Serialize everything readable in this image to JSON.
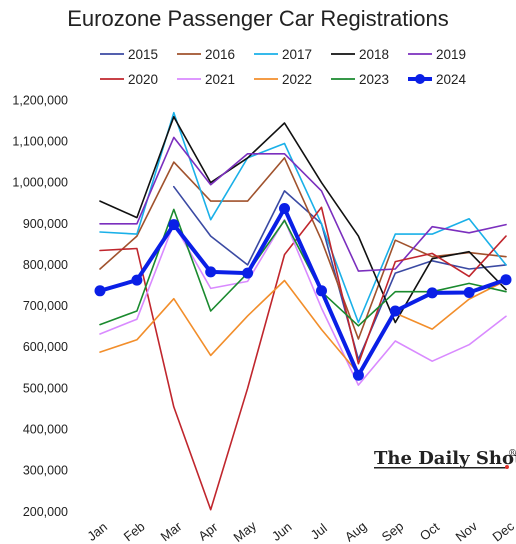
{
  "chart_data": {
    "type": "line",
    "title": "Eurozone Passenger Car Registrations",
    "xlabel": "",
    "ylabel": "",
    "categories": [
      "Jan",
      "Feb",
      "Mar",
      "Apr",
      "May",
      "Jun",
      "Jul",
      "Aug",
      "Sep",
      "Oct",
      "Nov",
      "Dec"
    ],
    "ylim": [
      180000,
      1230000
    ],
    "yticks": [
      200000,
      300000,
      400000,
      500000,
      600000,
      700000,
      800000,
      900000,
      1000000,
      1100000,
      1200000
    ],
    "ytick_labels": [
      "200,000",
      "300,000",
      "400,000",
      "500,000",
      "600,000",
      "700,000",
      "800,000",
      "900,000",
      "1,000,000",
      "1,100,000",
      "1,200,000"
    ],
    "grid": false,
    "legend_position": "top",
    "series": [
      {
        "name": "2015",
        "color": "#3b4aa3",
        "values": [
          null,
          null,
          990000,
          870000,
          800000,
          980000,
          900000,
          570000,
          780000,
          810000,
          790000,
          800000
        ]
      },
      {
        "name": "2016",
        "color": "#a0522d",
        "values": [
          790000,
          870000,
          1050000,
          955000,
          955000,
          1060000,
          860000,
          620000,
          860000,
          820000,
          830000,
          820000
        ]
      },
      {
        "name": "2017",
        "color": "#1ab0e8",
        "values": [
          880000,
          875000,
          1170000,
          910000,
          1060000,
          1095000,
          900000,
          660000,
          875000,
          875000,
          912000,
          800000
        ]
      },
      {
        "name": "2018",
        "color": "#111111",
        "values": [
          955000,
          915000,
          1160000,
          1000000,
          1060000,
          1145000,
          1000000,
          870000,
          660000,
          815000,
          832000,
          740000
        ]
      },
      {
        "name": "2019",
        "color": "#7b2fbe",
        "values": [
          900000,
          900000,
          1110000,
          995000,
          1070000,
          1070000,
          980000,
          785000,
          790000,
          893000,
          878000,
          898000
        ]
      },
      {
        "name": "2020",
        "color": "#c0262d",
        "values": [
          835000,
          840000,
          455000,
          205000,
          500000,
          825000,
          940000,
          560000,
          808000,
          828000,
          772000,
          870000
        ]
      },
      {
        "name": "2021",
        "color": "#d98aff",
        "values": [
          632000,
          668000,
          900000,
          743000,
          760000,
          910000,
          695000,
          508000,
          615000,
          566000,
          606000,
          675000
        ]
      },
      {
        "name": "2022",
        "color": "#f28e2b",
        "values": [
          588000,
          618000,
          718000,
          580000,
          676000,
          762000,
          643000,
          536000,
          683000,
          644000,
          717000,
          762000
        ]
      },
      {
        "name": "2023",
        "color": "#1a8a2e",
        "values": [
          655000,
          688000,
          935000,
          688000,
          780000,
          908000,
          735000,
          652000,
          735000,
          735000,
          755000,
          735000
        ]
      },
      {
        "name": "2024",
        "color": "#0a1fe6",
        "values": [
          737000,
          763000,
          898000,
          783000,
          780000,
          937000,
          737000,
          532000,
          688000,
          732000,
          733000,
          764000
        ]
      }
    ]
  },
  "watermark": {
    "text": "The Daily Shot",
    "mark": "®"
  }
}
